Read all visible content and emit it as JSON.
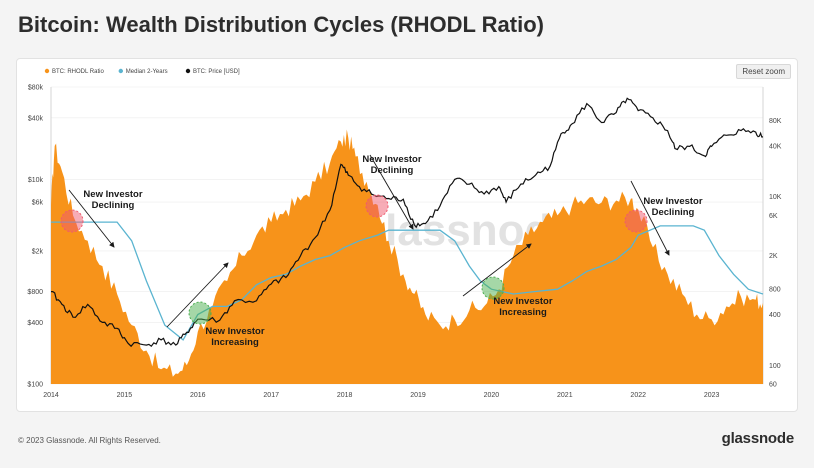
{
  "header": {
    "title": "Bitcoin: Wealth Distribution Cycles (RHODL Ratio)"
  },
  "toolbar": {
    "reset_zoom_label": "Reset zoom"
  },
  "footer": {
    "copyright": "© 2023 Glassnode. All Rights Reserved.",
    "logo_text": "glassnode"
  },
  "watermark": "glassnode",
  "colors": {
    "rhodl": "#f7931a",
    "median": "#5ab4d0",
    "price": "#111111",
    "declining": "#f05a6e",
    "increasing": "#4caf50"
  },
  "chart_data": {
    "type": "area",
    "legend": [
      "BTC: RHODL Ratio",
      "Median 2-Years",
      "BTC: Price [USD]"
    ],
    "legend_position": "top-left",
    "x_ticks": [
      "2014",
      "2015",
      "2016",
      "2017",
      "2018",
      "2019",
      "2020",
      "2021",
      "2022",
      "2023"
    ],
    "x_range": [
      2014.0,
      2023.7
    ],
    "left_axis": {
      "label": "BTC: Price [USD]",
      "scale": "log",
      "range": [
        100,
        80000
      ],
      "ticks": [
        "$80k",
        "$40k",
        "$10k",
        "$6k",
        "$2k",
        "$800",
        "$400",
        "$100"
      ]
    },
    "right_axis": {
      "label": "BTC: RHODL Ratio",
      "scale": "log",
      "range": [
        60,
        200000
      ],
      "ticks": [
        "80K",
        "40K",
        "10K",
        "6K",
        "2K",
        "800",
        "400",
        "100",
        "60"
      ]
    },
    "series": [
      {
        "name": "BTC: RHODL Ratio",
        "x": [
          2014.0,
          2014.05,
          2014.15,
          2014.3,
          2014.5,
          2014.7,
          2014.9,
          2015.1,
          2015.3,
          2015.5,
          2015.7,
          2015.85,
          2016.0,
          2016.2,
          2016.4,
          2016.6,
          2016.8,
          2017.0,
          2017.2,
          2017.4,
          2017.6,
          2017.8,
          2017.95,
          2018.05,
          2018.15,
          2018.3,
          2018.45,
          2018.6,
          2018.8,
          2018.95,
          2019.1,
          2019.3,
          2019.5,
          2019.7,
          2019.9,
          2020.1,
          2020.3,
          2020.5,
          2020.7,
          2020.9,
          2021.1,
          2021.3,
          2021.5,
          2021.7,
          2021.9,
          2022.0,
          2022.2,
          2022.4,
          2022.6,
          2022.8,
          2023.0,
          2023.2,
          2023.4,
          2023.6,
          2023.7
        ],
        "values": [
          8000,
          40000,
          20000,
          6000,
          3000,
          1500,
          700,
          300,
          150,
          90,
          80,
          100,
          250,
          500,
          1000,
          2000,
          3500,
          5000,
          7000,
          9000,
          15000,
          25000,
          45000,
          50000,
          30000,
          15000,
          8000,
          3000,
          1200,
          700,
          400,
          300,
          350,
          450,
          500,
          800,
          2000,
          3500,
          5000,
          6000,
          8000,
          9000,
          8500,
          9000,
          9500,
          7000,
          2500,
          1200,
          700,
          400,
          350,
          500,
          650,
          600,
          550
        ]
      },
      {
        "name": "Median 2-Years",
        "x": [
          2014.0,
          2014.3,
          2014.6,
          2014.9,
          2015.1,
          2015.3,
          2015.55,
          2015.8,
          2016.0,
          2016.2,
          2016.4,
          2016.6,
          2016.8,
          2017.0,
          2017.2,
          2017.4,
          2017.6,
          2017.8,
          2018.0,
          2018.2,
          2018.45,
          2018.6,
          2019.0,
          2019.3,
          2019.5,
          2019.7,
          2019.85,
          2020.0,
          2020.3,
          2020.6,
          2020.9,
          2021.1,
          2021.3,
          2021.5,
          2021.7,
          2021.9,
          2022.0,
          2022.3,
          2022.55,
          2022.75,
          2022.9,
          2023.1,
          2023.3,
          2023.5,
          2023.7
        ],
        "values": [
          5000,
          5000,
          5000,
          5000,
          3000,
          1000,
          300,
          200,
          400,
          500,
          500,
          600,
          900,
          1100,
          1200,
          1500,
          1800,
          2000,
          2500,
          3000,
          3500,
          4000,
          4000,
          4000,
          3000,
          1500,
          1000,
          800,
          700,
          750,
          800,
          1000,
          1300,
          1500,
          1800,
          2500,
          3500,
          4500,
          4500,
          4500,
          4000,
          2000,
          1200,
          800,
          700
        ]
      },
      {
        "name": "BTC: Price [USD]",
        "x": [
          2014.0,
          2014.15,
          2014.3,
          2014.5,
          2014.7,
          2014.9,
          2015.05,
          2015.3,
          2015.5,
          2015.7,
          2015.85,
          2016.0,
          2016.3,
          2016.5,
          2016.8,
          2017.0,
          2017.2,
          2017.4,
          2017.6,
          2017.8,
          2017.95,
          2018.05,
          2018.2,
          2018.4,
          2018.6,
          2018.8,
          2018.95,
          2019.1,
          2019.3,
          2019.5,
          2019.7,
          2019.9,
          2020.1,
          2020.2,
          2020.4,
          2020.6,
          2020.8,
          2020.95,
          2021.1,
          2021.3,
          2021.5,
          2021.7,
          2021.85,
          2022.0,
          2022.2,
          2022.4,
          2022.5,
          2022.7,
          2022.9,
          2023.0,
          2023.2,
          2023.4,
          2023.6,
          2023.7
        ],
        "values": [
          800,
          600,
          450,
          600,
          400,
          350,
          250,
          240,
          270,
          240,
          320,
          430,
          420,
          650,
          650,
          950,
          1100,
          1800,
          2700,
          5000,
          14000,
          11000,
          8500,
          7000,
          6500,
          6400,
          3600,
          3700,
          5500,
          10000,
          9000,
          7200,
          8500,
          6000,
          9000,
          11000,
          13500,
          28000,
          35000,
          55000,
          36000,
          45000,
          62000,
          47000,
          40000,
          30000,
          20000,
          21000,
          17000,
          21000,
          27000,
          30000,
          29000,
          26000
        ]
      }
    ],
    "annotations": [
      {
        "text": "New Investor Declining",
        "x": 2014.25,
        "phase": "declining"
      },
      {
        "text": "New Investor Increasing",
        "x": 2016.0,
        "phase": "increasing"
      },
      {
        "text": "New Investor Declining",
        "x": 2018.5,
        "phase": "declining"
      },
      {
        "text": "New Investor Increasing",
        "x": 2020.0,
        "phase": "increasing"
      },
      {
        "text": "New Investor Declining",
        "x": 2022.2,
        "phase": "declining"
      }
    ]
  }
}
